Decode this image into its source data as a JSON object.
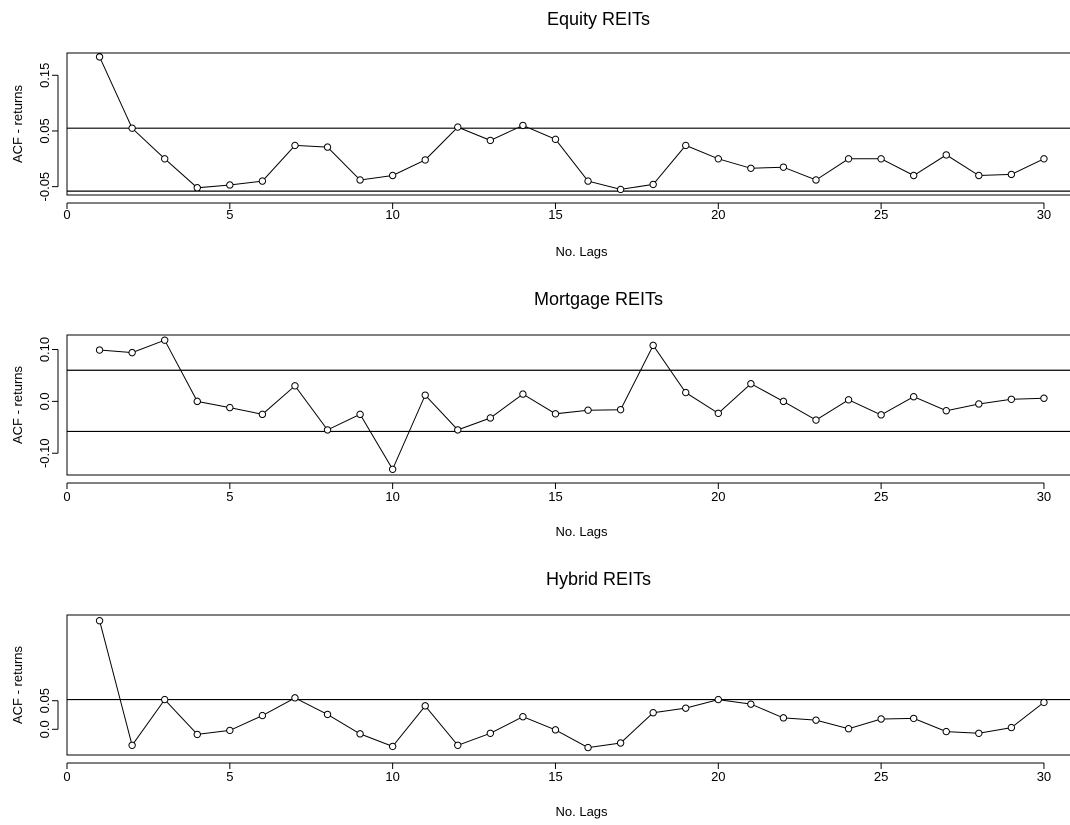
{
  "chart_data": [
    {
      "type": "line",
      "title": "Equity REITs",
      "xlabel": "No. Lags",
      "ylabel": "ACF - returns",
      "xlim": [
        0,
        30.8
      ],
      "ylim": [
        -0.065,
        0.19
      ],
      "xticks": [
        0,
        5,
        10,
        15,
        20,
        25,
        30
      ],
      "yticks": [
        -0.05,
        0.05,
        0.15
      ],
      "ytick_labels": [
        "-0.05",
        "0.05",
        "0.15"
      ],
      "ref_lines": [
        0.055,
        -0.058
      ],
      "x": [
        1,
        2,
        3,
        4,
        5,
        6,
        7,
        8,
        9,
        10,
        11,
        12,
        13,
        14,
        15,
        16,
        17,
        18,
        19,
        20,
        21,
        22,
        23,
        24,
        25,
        26,
        27,
        28,
        29,
        30
      ],
      "values": [
        0.183,
        0.055,
        0.0,
        -0.052,
        -0.047,
        -0.04,
        0.024,
        0.021,
        -0.038,
        -0.03,
        -0.002,
        0.057,
        0.033,
        0.06,
        0.035,
        -0.04,
        -0.055,
        -0.046,
        0.024,
        0.0,
        -0.017,
        -0.015,
        -0.038,
        0.0,
        0.0,
        -0.03,
        0.007,
        -0.03,
        -0.028,
        0.0
      ]
    },
    {
      "type": "line",
      "title": "Mortgage REITs",
      "xlabel": "No. Lags",
      "ylabel": "ACF - returns",
      "xlim": [
        0,
        30.8
      ],
      "ylim": [
        -0.142,
        0.128
      ],
      "xticks": [
        0,
        5,
        10,
        15,
        20,
        25,
        30
      ],
      "yticks": [
        -0.1,
        0.0,
        0.1
      ],
      "ytick_labels": [
        "-0.10",
        "0.0",
        "0.10"
      ],
      "ref_lines": [
        0.06,
        -0.058
      ],
      "x": [
        1,
        2,
        3,
        4,
        5,
        6,
        7,
        8,
        9,
        10,
        11,
        12,
        13,
        14,
        15,
        16,
        17,
        18,
        19,
        20,
        21,
        22,
        23,
        24,
        25,
        26,
        27,
        28,
        29,
        30
      ],
      "values": [
        0.099,
        0.094,
        0.118,
        0.0,
        -0.012,
        -0.025,
        0.03,
        -0.055,
        -0.025,
        -0.131,
        0.012,
        -0.055,
        -0.032,
        0.014,
        -0.024,
        -0.017,
        -0.016,
        0.108,
        0.017,
        -0.023,
        0.034,
        0.0,
        -0.036,
        0.003,
        -0.026,
        0.009,
        -0.018,
        -0.005,
        0.004,
        0.006
      ]
    },
    {
      "type": "line",
      "title": "Hybrid REITs",
      "xlabel": "No. Lags",
      "ylabel": "ACF - returns",
      "xlim": [
        0,
        30.8
      ],
      "ylim": [
        -0.045,
        0.2
      ],
      "xticks": [
        0,
        5,
        10,
        15,
        20,
        25,
        30
      ],
      "yticks": [
        0.0,
        0.05
      ],
      "ytick_labels": [
        "0.0",
        "0.05"
      ],
      "ref_lines": [
        0.052
      ],
      "x": [
        1,
        2,
        3,
        4,
        5,
        6,
        7,
        8,
        9,
        10,
        11,
        12,
        13,
        14,
        15,
        16,
        17,
        18,
        19,
        20,
        21,
        22,
        23,
        24,
        25,
        26,
        27,
        28,
        29,
        30
      ],
      "values": [
        0.19,
        -0.028,
        0.052,
        -0.009,
        -0.002,
        0.024,
        0.055,
        0.026,
        -0.008,
        -0.03,
        0.041,
        -0.028,
        -0.007,
        0.022,
        -0.001,
        -0.032,
        -0.024,
        0.029,
        0.037,
        0.052,
        0.044,
        0.02,
        0.016,
        0.001,
        0.018,
        0.019,
        -0.004,
        -0.007,
        0.003,
        0.047
      ]
    }
  ]
}
